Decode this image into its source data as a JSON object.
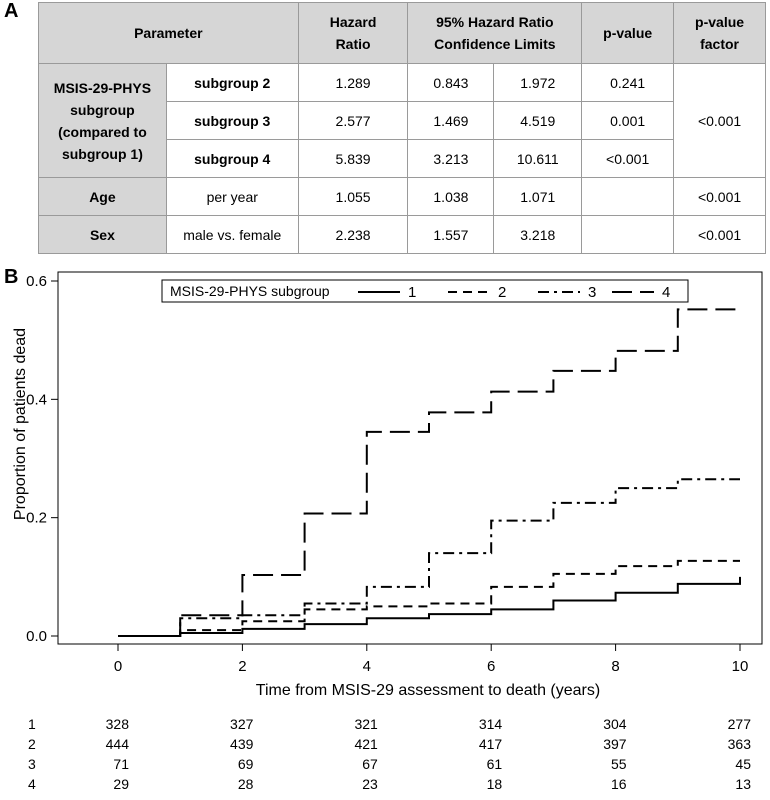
{
  "panel_labels": {
    "a": "A",
    "b": "B"
  },
  "table": {
    "headers": {
      "parameter": "Parameter",
      "hazard_ratio_1": "Hazard",
      "hazard_ratio_2": "Ratio",
      "ci_1": "95% Hazard Ratio",
      "ci_2": "Confidence Limits",
      "pvalue": "p-value",
      "pfactor_1": "p-value",
      "pfactor_2": "factor"
    },
    "msis_group": {
      "label_1": "MSIS-29-PHYS",
      "label_2": "subgroup",
      "label_3": "(compared to",
      "label_4": "subgroup 1)",
      "p_factor": "<0.001",
      "rows": [
        {
          "name": "subgroup 2",
          "hr": "1.289",
          "ci_low": "0.843",
          "ci_high": "1.972",
          "p": "0.241"
        },
        {
          "name": "subgroup 3",
          "hr": "2.577",
          "ci_low": "1.469",
          "ci_high": "4.519",
          "p": "0.001"
        },
        {
          "name": "subgroup 4",
          "hr": "5.839",
          "ci_low": "3.213",
          "ci_high": "10.611",
          "p": "<0.001"
        }
      ]
    },
    "age": {
      "label": "Age",
      "sub": "per year",
      "hr": "1.055",
      "ci_low": "1.038",
      "ci_high": "1.071",
      "p": "",
      "p_factor": "<0.001"
    },
    "sex": {
      "label": "Sex",
      "sub": "male vs. female",
      "hr": "2.238",
      "ci_low": "1.557",
      "ci_high": "3.218",
      "p": "",
      "p_factor": "<0.001"
    }
  },
  "chart_data": {
    "type": "line",
    "step": true,
    "xlabel": "Time from MSIS-29 assessment to death (years)",
    "ylabel": "Proportion of patients dead",
    "xlim": [
      0,
      10
    ],
    "ylim": [
      0,
      0.6
    ],
    "xticks": [
      0,
      2,
      4,
      6,
      8,
      10
    ],
    "yticks": [
      "0.0",
      "0.2",
      "0.4",
      "0.6"
    ],
    "legend": {
      "title": "MSIS-29-PHYS subgroup",
      "placement": "top-left"
    },
    "series": [
      {
        "name": "1",
        "dash": "solid",
        "x": [
          0,
          1,
          2,
          3,
          4,
          5,
          6,
          7,
          8,
          9,
          10
        ],
        "y": [
          0,
          0.005,
          0.012,
          0.02,
          0.03,
          0.037,
          0.045,
          0.06,
          0.073,
          0.088,
          0.1
        ]
      },
      {
        "name": "2",
        "dash": "dash",
        "x": [
          0,
          1,
          2,
          3,
          4,
          5,
          6,
          7,
          8,
          9,
          10
        ],
        "y": [
          0,
          0.01,
          0.025,
          0.045,
          0.05,
          0.055,
          0.083,
          0.105,
          0.118,
          0.127,
          0.127
        ]
      },
      {
        "name": "3",
        "dash": "dashdot",
        "x": [
          0,
          1,
          2,
          3,
          4,
          5,
          6,
          7,
          8,
          9,
          10
        ],
        "y": [
          0,
          0.03,
          0.035,
          0.055,
          0.083,
          0.14,
          0.195,
          0.225,
          0.25,
          0.265,
          0.265
        ]
      },
      {
        "name": "4",
        "dash": "longdash",
        "x": [
          0,
          1,
          2,
          3,
          4,
          5,
          6,
          7,
          8,
          9,
          10
        ],
        "y": [
          0,
          0.035,
          0.103,
          0.207,
          0.345,
          0.378,
          0.413,
          0.448,
          0.482,
          0.552,
          0.552
        ]
      }
    ],
    "risk_table": {
      "times": [
        0,
        2,
        4,
        6,
        8,
        10
      ],
      "rows": [
        {
          "label": "1",
          "values": [
            "328",
            "327",
            "321",
            "314",
            "304",
            "277"
          ]
        },
        {
          "label": "2",
          "values": [
            "444",
            "439",
            "421",
            "417",
            "397",
            "363"
          ]
        },
        {
          "label": "3",
          "values": [
            "71",
            "69",
            "67",
            "61",
            "55",
            "45"
          ]
        },
        {
          "label": "4",
          "values": [
            "29",
            "28",
            "23",
            "18",
            "16",
            "13"
          ]
        }
      ]
    }
  }
}
